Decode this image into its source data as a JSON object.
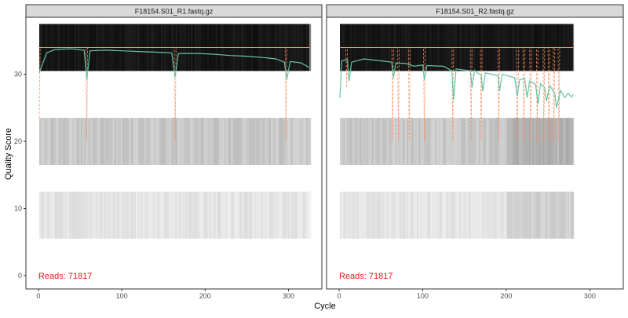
{
  "colors": {
    "strip_bg": "#d9d9d9",
    "border": "#333333",
    "mean_line": "#66c2a5",
    "quantile_line": "#fc8d62",
    "reads_text": "#e41a1c",
    "heat_dark": "#111111"
  },
  "chart_data": {
    "type": "heatmap",
    "xlabel": "Cycle",
    "ylabel": "Quality Score",
    "xlim": [
      -15,
      340
    ],
    "ylim": [
      -2,
      38.5
    ],
    "x_ticks": [
      0,
      100,
      200,
      300
    ],
    "y_ticks": [
      0,
      10,
      20,
      30
    ],
    "quality_bands": [
      {
        "from": 30.5,
        "to": 37.5,
        "shade": "dark"
      },
      {
        "from": 16.5,
        "to": 23.5,
        "shade": "medium"
      },
      {
        "from": 5.5,
        "to": 12.5,
        "shade": "light"
      }
    ],
    "facets": [
      {
        "title": "F18154.S01_R1.fastq.gz",
        "reads_label": "Reads:  71817",
        "cycles": 325,
        "reference_line": 34,
        "mean_quality": [
          {
            "x": 1,
            "y": 30.2
          },
          {
            "x": 10,
            "y": 33.2
          },
          {
            "x": 20,
            "y": 33.7
          },
          {
            "x": 40,
            "y": 33.8
          },
          {
            "x": 55,
            "y": 33.6
          },
          {
            "x": 58,
            "y": 29.2
          },
          {
            "x": 62,
            "y": 33.5
          },
          {
            "x": 80,
            "y": 33.6
          },
          {
            "x": 100,
            "y": 33.5
          },
          {
            "x": 120,
            "y": 33.4
          },
          {
            "x": 140,
            "y": 33.3
          },
          {
            "x": 160,
            "y": 33.2
          },
          {
            "x": 164,
            "y": 29.6
          },
          {
            "x": 168,
            "y": 33.1
          },
          {
            "x": 190,
            "y": 33.1
          },
          {
            "x": 210,
            "y": 33.0
          },
          {
            "x": 230,
            "y": 32.8
          },
          {
            "x": 250,
            "y": 32.7
          },
          {
            "x": 270,
            "y": 32.5
          },
          {
            "x": 285,
            "y": 32.3
          },
          {
            "x": 295,
            "y": 31.8
          },
          {
            "x": 298,
            "y": 29.2
          },
          {
            "x": 302,
            "y": 31.9
          },
          {
            "x": 315,
            "y": 31.7
          },
          {
            "x": 325,
            "y": 31.0
          }
        ],
        "quantile_line": [
          {
            "x": 1,
            "y": 23.5
          },
          {
            "x": 2,
            "y": 34
          },
          {
            "x": 57,
            "y": 34
          },
          {
            "x": 58,
            "y": 20
          },
          {
            "x": 59,
            "y": 34
          },
          {
            "x": 163,
            "y": 34
          },
          {
            "x": 164,
            "y": 20
          },
          {
            "x": 165,
            "y": 34
          },
          {
            "x": 296,
            "y": 34
          },
          {
            "x": 297,
            "y": 20
          },
          {
            "x": 298,
            "y": 34
          },
          {
            "x": 325,
            "y": 34
          }
        ]
      },
      {
        "title": "F18154.S01_R2.fastq.gz",
        "reads_label": "Reads:  71817",
        "cycles": 280,
        "reference_line": 34,
        "mean_quality": [
          {
            "x": 1,
            "y": 26.5
          },
          {
            "x": 3,
            "y": 32.0
          },
          {
            "x": 10,
            "y": 32.2
          },
          {
            "x": 12,
            "y": 29.0
          },
          {
            "x": 15,
            "y": 31.8
          },
          {
            "x": 30,
            "y": 32.3
          },
          {
            "x": 50,
            "y": 32.0
          },
          {
            "x": 63,
            "y": 31.8
          },
          {
            "x": 65,
            "y": 29.5
          },
          {
            "x": 68,
            "y": 31.7
          },
          {
            "x": 80,
            "y": 31.6
          },
          {
            "x": 90,
            "y": 31.2
          },
          {
            "x": 100,
            "y": 31.4
          },
          {
            "x": 102,
            "y": 29.2
          },
          {
            "x": 105,
            "y": 31.3
          },
          {
            "x": 125,
            "y": 31.2
          },
          {
            "x": 135,
            "y": 30.5
          },
          {
            "x": 137,
            "y": 26.2
          },
          {
            "x": 140,
            "y": 30.8
          },
          {
            "x": 157,
            "y": 30.5
          },
          {
            "x": 159,
            "y": 28.0
          },
          {
            "x": 162,
            "y": 30.6
          },
          {
            "x": 170,
            "y": 29.8
          },
          {
            "x": 172,
            "y": 27.5
          },
          {
            "x": 175,
            "y": 30.2
          },
          {
            "x": 190,
            "y": 29.8
          },
          {
            "x": 192,
            "y": 27.5
          },
          {
            "x": 195,
            "y": 30.0
          },
          {
            "x": 210,
            "y": 29.5
          },
          {
            "x": 213,
            "y": 26.8
          },
          {
            "x": 216,
            "y": 29.2
          },
          {
            "x": 222,
            "y": 29.4
          },
          {
            "x": 225,
            "y": 26.5
          },
          {
            "x": 228,
            "y": 29.0
          },
          {
            "x": 235,
            "y": 28.5
          },
          {
            "x": 238,
            "y": 25.5
          },
          {
            "x": 241,
            "y": 28.6
          },
          {
            "x": 246,
            "y": 28.0
          },
          {
            "x": 248,
            "y": 26.0
          },
          {
            "x": 252,
            "y": 28.3
          },
          {
            "x": 258,
            "y": 27.2
          },
          {
            "x": 260,
            "y": 25.0
          },
          {
            "x": 265,
            "y": 27.6
          },
          {
            "x": 270,
            "y": 26.5
          },
          {
            "x": 274,
            "y": 27.2
          },
          {
            "x": 278,
            "y": 26.6
          },
          {
            "x": 280,
            "y": 27.0
          }
        ],
        "quantile_line": [
          {
            "x": 1,
            "y": 34
          },
          {
            "x": 8,
            "y": 34
          },
          {
            "x": 9,
            "y": 28
          },
          {
            "x": 10,
            "y": 34
          },
          {
            "x": 63,
            "y": 34
          },
          {
            "x": 64,
            "y": 20
          },
          {
            "x": 65,
            "y": 34
          },
          {
            "x": 70,
            "y": 34
          },
          {
            "x": 71,
            "y": 20
          },
          {
            "x": 72,
            "y": 34
          },
          {
            "x": 83,
            "y": 34
          },
          {
            "x": 84,
            "y": 20
          },
          {
            "x": 85,
            "y": 34
          },
          {
            "x": 101,
            "y": 34
          },
          {
            "x": 102,
            "y": 20
          },
          {
            "x": 103,
            "y": 34
          },
          {
            "x": 135,
            "y": 34
          },
          {
            "x": 136,
            "y": 20
          },
          {
            "x": 137,
            "y": 34
          },
          {
            "x": 157,
            "y": 34
          },
          {
            "x": 158,
            "y": 20
          },
          {
            "x": 159,
            "y": 34
          },
          {
            "x": 169,
            "y": 34
          },
          {
            "x": 170,
            "y": 20
          },
          {
            "x": 171,
            "y": 34
          },
          {
            "x": 190,
            "y": 34
          },
          {
            "x": 191,
            "y": 20
          },
          {
            "x": 192,
            "y": 34
          },
          {
            "x": 212,
            "y": 34
          },
          {
            "x": 213,
            "y": 20
          },
          {
            "x": 215,
            "y": 34
          },
          {
            "x": 220,
            "y": 34
          },
          {
            "x": 221,
            "y": 20
          },
          {
            "x": 222,
            "y": 34
          },
          {
            "x": 228,
            "y": 34
          },
          {
            "x": 229,
            "y": 20
          },
          {
            "x": 230,
            "y": 34
          },
          {
            "x": 236,
            "y": 34
          },
          {
            "x": 237,
            "y": 20
          },
          {
            "x": 238,
            "y": 34
          },
          {
            "x": 244,
            "y": 34
          },
          {
            "x": 245,
            "y": 20
          },
          {
            "x": 246,
            "y": 34
          },
          {
            "x": 250,
            "y": 34
          },
          {
            "x": 251,
            "y": 20
          },
          {
            "x": 252,
            "y": 34
          },
          {
            "x": 256,
            "y": 34
          },
          {
            "x": 257,
            "y": 20
          },
          {
            "x": 258,
            "y": 34
          },
          {
            "x": 262,
            "y": 34
          },
          {
            "x": 263,
            "y": 20
          },
          {
            "x": 264,
            "y": 34
          },
          {
            "x": 280,
            "y": 34
          }
        ]
      }
    ]
  }
}
